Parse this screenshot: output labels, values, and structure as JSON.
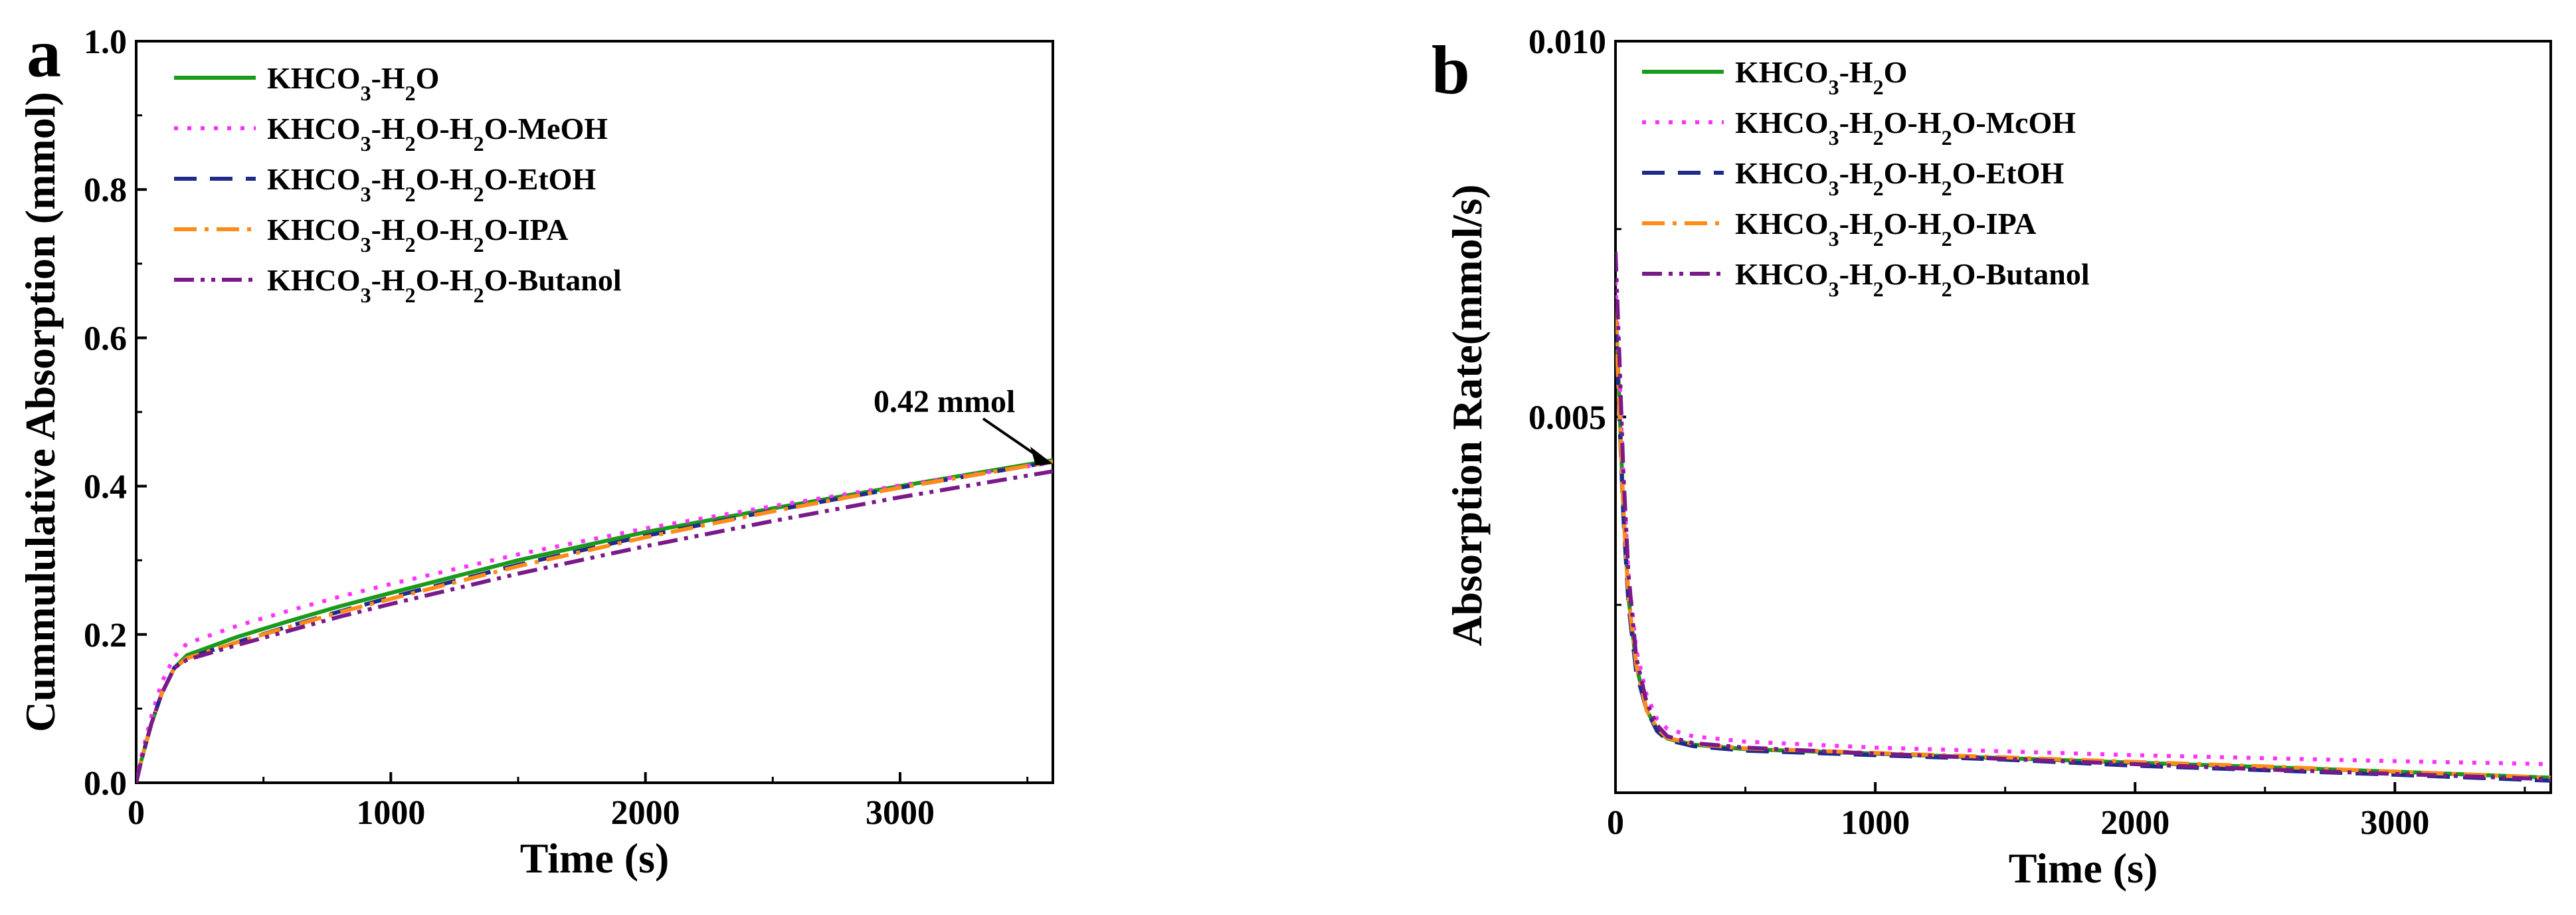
{
  "chart_data": [
    {
      "panel": "a",
      "type": "line",
      "xlabel": "Time (s)",
      "ylabel": "Cummululative Absorption (mmol)",
      "xlim": [
        0,
        3600
      ],
      "ylim": [
        0,
        1.0
      ],
      "xticks": [
        0,
        1000,
        2000,
        3000
      ],
      "xtick_labels": [
        "0",
        "1000",
        "2000",
        "3000"
      ],
      "yticks": [
        0,
        0.2,
        0.4,
        0.6,
        0.8,
        1.0
      ],
      "ytick_labels": [
        "0.0",
        "0.2",
        "0.4",
        "0.6",
        "0.8",
        "1.0"
      ],
      "grid": false,
      "legend_position": "top-left",
      "annotation": {
        "text": "0.42 mmol",
        "x": 3600,
        "y": 0.43
      },
      "series": [
        {
          "name": "KHCO3-H2O",
          "legend_base": "KHCO",
          "legend_parts": [
            "3",
            "-H",
            "2",
            "O"
          ],
          "color": "#1a9a1a",
          "dash": "solid",
          "x": [
            0,
            20,
            60,
            100,
            150,
            200,
            400,
            600,
            800,
            1000,
            1500,
            2000,
            2500,
            3000,
            3600
          ],
          "y": [
            0,
            0.03,
            0.08,
            0.12,
            0.155,
            0.172,
            0.197,
            0.218,
            0.238,
            0.256,
            0.3,
            0.338,
            0.37,
            0.4,
            0.435
          ]
        },
        {
          "name": "KHCO3-H2O-H2O-MeOH",
          "legend_base": "KHCO",
          "legend_parts": [
            "3",
            "-H",
            "2",
            "O-H",
            "2",
            "O-MeOH"
          ],
          "color": "#ff33ff",
          "dash": "dot",
          "x": [
            0,
            20,
            60,
            100,
            150,
            200,
            400,
            600,
            800,
            1000,
            1500,
            2000,
            2500,
            3000,
            3600
          ],
          "y": [
            0,
            0.035,
            0.09,
            0.135,
            0.17,
            0.188,
            0.212,
            0.232,
            0.251,
            0.268,
            0.308,
            0.343,
            0.373,
            0.401,
            0.432
          ]
        },
        {
          "name": "KHCO3-H2O-H2O-EtOH",
          "legend_base": "KHCO",
          "legend_parts": [
            "3",
            "-H",
            "2",
            "O-H",
            "2",
            "O-EtOH"
          ],
          "color": "#1f2a8a",
          "dash": "dash",
          "x": [
            0,
            20,
            60,
            100,
            150,
            200,
            400,
            600,
            800,
            1000,
            1500,
            2000,
            2500,
            3000,
            3600
          ],
          "y": [
            0,
            0.03,
            0.08,
            0.12,
            0.155,
            0.168,
            0.19,
            0.211,
            0.231,
            0.25,
            0.294,
            0.333,
            0.367,
            0.398,
            0.433
          ]
        },
        {
          "name": "KHCO3-H2O-H2O-IPA",
          "legend_base": "KHCO",
          "legend_parts": [
            "3",
            "-H",
            "2",
            "O-H",
            "2",
            "O-IPA"
          ],
          "color": "#ff8c1a",
          "dash": "dashdot",
          "x": [
            0,
            20,
            60,
            100,
            150,
            200,
            400,
            600,
            800,
            1000,
            1500,
            2000,
            2500,
            3000,
            3600
          ],
          "y": [
            0,
            0.03,
            0.08,
            0.12,
            0.155,
            0.168,
            0.19,
            0.21,
            0.23,
            0.248,
            0.292,
            0.331,
            0.366,
            0.398,
            0.433
          ]
        },
        {
          "name": "KHCO3-H2O-H2O-Butanol",
          "legend_base": "KHCO",
          "legend_parts": [
            "3",
            "-H",
            "2",
            "O-H",
            "2",
            "O-Butanol"
          ],
          "color": "#7a1a8a",
          "dash": "dashdotdot",
          "x": [
            0,
            20,
            60,
            100,
            150,
            200,
            400,
            600,
            800,
            1000,
            1500,
            2000,
            2500,
            3000,
            3600
          ],
          "y": [
            0,
            0.03,
            0.08,
            0.12,
            0.155,
            0.166,
            0.186,
            0.205,
            0.224,
            0.241,
            0.282,
            0.319,
            0.353,
            0.385,
            0.42
          ]
        }
      ]
    },
    {
      "panel": "b",
      "type": "line",
      "xlabel": "Time (s)",
      "ylabel": "Absorption Rate(mmol/s)",
      "xlim": [
        0,
        3600
      ],
      "ylim": [
        0,
        0.01
      ],
      "xticks": [
        0,
        1000,
        2000,
        3000
      ],
      "xtick_labels": [
        "0",
        "1000",
        "2000",
        "3000"
      ],
      "yticks": [
        0.005,
        0.01
      ],
      "ytick_labels": [
        "0.005",
        "0.010"
      ],
      "grid": false,
      "legend_position": "top-left",
      "series": [
        {
          "name": "KHCO3-H2O",
          "legend_base": "KHCO",
          "legend_parts": [
            "3",
            "-H",
            "2",
            "O"
          ],
          "color": "#1a9a1a",
          "dash": "solid",
          "x": [
            0,
            15,
            30,
            50,
            80,
            120,
            160,
            200,
            300,
            500,
            1000,
            1500,
            2000,
            2500,
            3000,
            3600
          ],
          "y": [
            0.0065,
            0.0052,
            0.0038,
            0.0026,
            0.0017,
            0.0011,
            0.00085,
            0.00072,
            0.00064,
            0.00058,
            0.00052,
            0.00046,
            0.0004,
            0.00034,
            0.00028,
            0.0002
          ]
        },
        {
          "name": "KHCO3-H2O-H2O-McOH",
          "legend_base": "KHCO",
          "legend_parts": [
            "3",
            "-H",
            "2",
            "O-H",
            "2",
            "O-McOH"
          ],
          "color": "#ff33ff",
          "dash": "dot",
          "x": [
            0,
            15,
            30,
            50,
            80,
            120,
            160,
            200,
            300,
            500,
            1000,
            1500,
            2000,
            2500,
            3000,
            3600
          ],
          "y": [
            0.0068,
            0.0056,
            0.0042,
            0.0029,
            0.0019,
            0.0013,
            0.00098,
            0.00085,
            0.00075,
            0.00068,
            0.0006,
            0.00055,
            0.0005,
            0.00046,
            0.00042,
            0.00038
          ]
        },
        {
          "name": "KHCO3-H2O-H2O-EtOH",
          "legend_base": "KHCO",
          "legend_parts": [
            "3",
            "-H",
            "2",
            "O-H",
            "2",
            "O-EtOH"
          ],
          "color": "#1f2a8a",
          "dash": "dash",
          "x": [
            0,
            15,
            30,
            50,
            80,
            120,
            160,
            200,
            300,
            500,
            1000,
            1500,
            2000,
            2500,
            3000,
            3600
          ],
          "y": [
            0.0062,
            0.005,
            0.0037,
            0.0025,
            0.0016,
            0.0011,
            0.00082,
            0.0007,
            0.00062,
            0.00056,
            0.0005,
            0.00044,
            0.00036,
            0.0003,
            0.00024,
            0.00016
          ]
        },
        {
          "name": "KHCO3-H2O-H2O-IPA",
          "legend_base": "KHCO",
          "legend_parts": [
            "3",
            "-H",
            "2",
            "O-H",
            "2",
            "O-IPA"
          ],
          "color": "#ff8c1a",
          "dash": "dashdot",
          "x": [
            0,
            15,
            30,
            50,
            80,
            120,
            160,
            200,
            300,
            500,
            1000,
            1500,
            2000,
            2500,
            3000,
            3600
          ],
          "y": [
            0.0064,
            0.0051,
            0.0038,
            0.0026,
            0.0017,
            0.0011,
            0.00086,
            0.00073,
            0.00065,
            0.00059,
            0.00053,
            0.00047,
            0.00041,
            0.00035,
            0.00028,
            0.0002
          ]
        },
        {
          "name": "KHCO3-H2O-H2O-Butanol",
          "legend_base": "KHCO",
          "legend_parts": [
            "3",
            "-H",
            "2",
            "O-H",
            "2",
            "O-Butanol"
          ],
          "color": "#7a1a8a",
          "dash": "dashdotdot",
          "x": [
            0,
            15,
            30,
            50,
            80,
            120,
            160,
            200,
            300,
            500,
            1000,
            1500,
            2000,
            2500,
            3000,
            3600
          ],
          "y": [
            0.0072,
            0.0058,
            0.0043,
            0.0029,
            0.0018,
            0.0012,
            0.0009,
            0.00075,
            0.00066,
            0.0006,
            0.00052,
            0.00045,
            0.00038,
            0.00031,
            0.00025,
            0.00018
          ]
        }
      ]
    }
  ]
}
